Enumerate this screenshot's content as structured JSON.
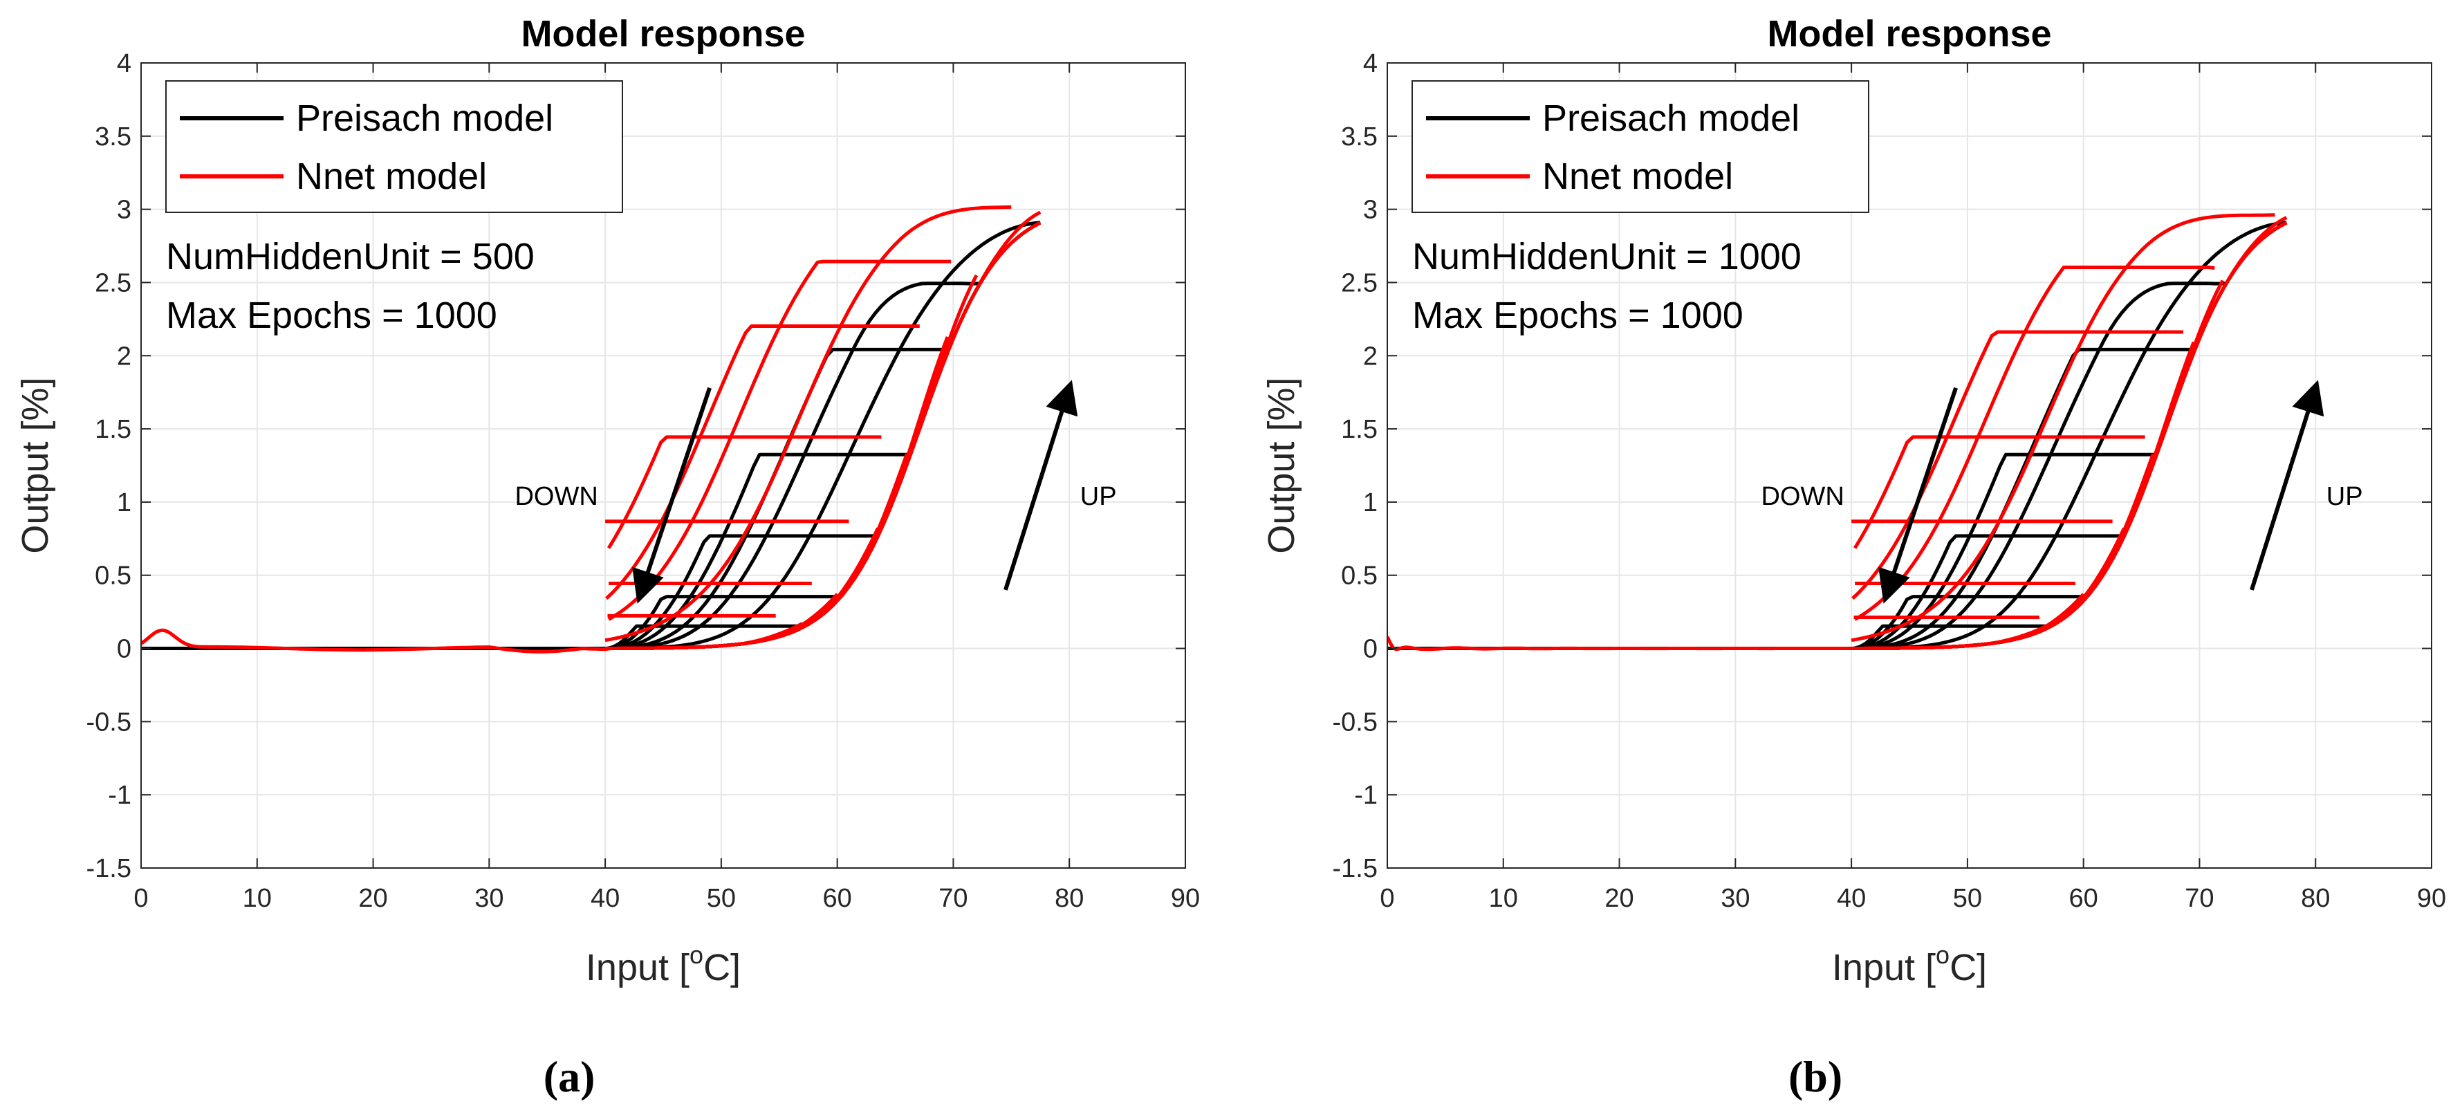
{
  "colors": {
    "preisach": "#000000",
    "nnet": "#ff0000",
    "grid": "#e6e6e6",
    "axis": "#262626",
    "background": "#ffffff"
  },
  "panels": [
    {
      "label": "(a)",
      "legend": [
        "Preisach model",
        "Nnet model"
      ],
      "annotations": {
        "line1": "NumHiddenUnit = 500",
        "line2": "Max Epochs = 1000",
        "down": "DOWN",
        "up": "UP"
      }
    },
    {
      "label": "(b)",
      "legend": [
        "Preisach model",
        "Nnet model"
      ],
      "annotations": {
        "line1": "NumHiddenUnit = 1000",
        "line2": "Max Epochs = 1000",
        "down": "DOWN",
        "up": "UP"
      }
    }
  ],
  "chart_data": [
    {
      "type": "line",
      "title": "Model response",
      "xlabel": "Input [°C]",
      "ylabel": "Output [%]",
      "xlim": [
        0,
        90
      ],
      "ylim": [
        -1.5,
        4
      ],
      "xticks": [
        0,
        10,
        20,
        30,
        40,
        50,
        60,
        70,
        80,
        90
      ],
      "yticks": [
        -1.5,
        -1,
        -0.5,
        0,
        0.5,
        1,
        1.5,
        2,
        2.5,
        3,
        3.5,
        4
      ],
      "grid": true,
      "legend_position": "top-left",
      "series": [
        {
          "name": "Preisach model",
          "major_loop_max": 3.05,
          "minor_loop_peaks": [
            [
              77.5,
              3.05
            ],
            [
              72.3,
              2.6
            ],
            [
              69.6,
              1.96
            ],
            [
              66.3,
              1.29
            ],
            [
              63.5,
              0.71
            ],
            [
              60.3,
              0.32
            ],
            [
              57.2,
              0.11
            ]
          ]
        },
        {
          "name": "Nnet model",
          "start_bump": [
            [
              0,
              0
            ],
            [
              1.8,
              0.12
            ],
            [
              5,
              0.03
            ]
          ],
          "minor_loop_peaks": [
            [
              77.5,
              3.13
            ],
            [
              73.8,
              2.71
            ],
            [
              71.2,
              2.08
            ],
            [
              66.3,
              1.37
            ],
            [
              63.5,
              0.77
            ],
            [
              60.8,
              0.37
            ],
            [
              57.5,
              0.14
            ]
          ]
        }
      ],
      "arrows": [
        {
          "label": "DOWN",
          "from": [
            49,
            1.78
          ],
          "to": [
            43,
            0.36
          ]
        },
        {
          "label": "UP",
          "from": [
            74.5,
            0.4
          ],
          "to": [
            80,
            1.78
          ]
        }
      ]
    },
    {
      "type": "line",
      "title": "Model response",
      "xlabel": "Input [°C]",
      "ylabel": "Output [%]",
      "xlim": [
        0,
        90
      ],
      "ylim": [
        -1.5,
        4
      ],
      "xticks": [
        0,
        10,
        20,
        30,
        40,
        50,
        60,
        70,
        80,
        90
      ],
      "yticks": [
        -1.5,
        -1,
        -0.5,
        0,
        0.5,
        1,
        1.5,
        2,
        2.5,
        3,
        3.5,
        4
      ],
      "grid": true,
      "legend_position": "top-left",
      "series": [
        {
          "name": "Preisach model",
          "major_loop_max": 3.05,
          "minor_loop_peaks": [
            [
              77.5,
              3.05
            ],
            [
              72.3,
              2.6
            ],
            [
              69.6,
              1.96
            ],
            [
              66.3,
              1.29
            ],
            [
              63.5,
              0.71
            ],
            [
              60.3,
              0.32
            ],
            [
              57.2,
              0.11
            ]
          ]
        },
        {
          "name": "Nnet model",
          "start_ripple": [
            [
              0,
              0.08
            ],
            [
              0.5,
              -0.05
            ],
            [
              1.5,
              0.03
            ],
            [
              3,
              -0.02
            ],
            [
              6,
              0.02
            ]
          ],
          "minor_loop_peaks": [
            [
              77.5,
              3.09
            ],
            [
              72.6,
              2.67
            ],
            [
              69.8,
              2.04
            ],
            [
              67.4,
              1.37
            ],
            [
              64,
              0.77
            ],
            [
              60.3,
              0.37
            ],
            [
              57.2,
              0.13
            ]
          ]
        }
      ],
      "arrows": [
        {
          "label": "DOWN",
          "from": [
            49,
            1.78
          ],
          "to": [
            43,
            0.36
          ]
        },
        {
          "label": "UP",
          "from": [
            74.5,
            0.4
          ],
          "to": [
            80,
            1.78
          ]
        }
      ]
    }
  ]
}
